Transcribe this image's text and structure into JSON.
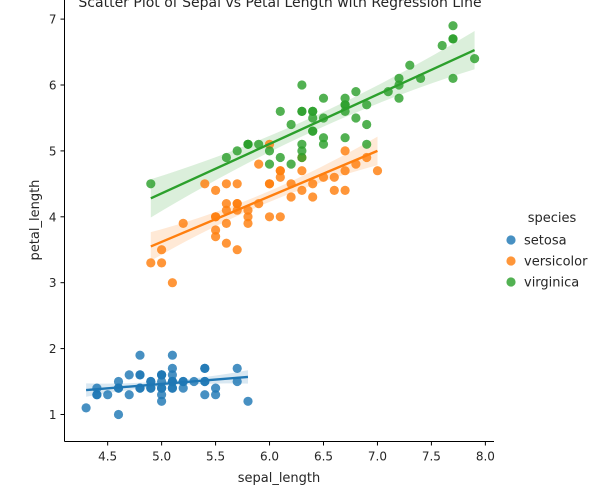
{
  "chart_data": {
    "type": "scatter",
    "title": "Scatter Plot of Sepal vs Petal Length with Regression Line",
    "xlabel": "sepal_length",
    "ylabel": "petal_length",
    "xlim": [
      4.1,
      8.08
    ],
    "ylim": [
      0.59,
      7.29
    ],
    "xticks": [
      4.5,
      5.0,
      5.5,
      6.0,
      6.5,
      7.0,
      7.5,
      8.0
    ],
    "xtick_labels": [
      "4.5",
      "5.0",
      "5.5",
      "6.0",
      "6.5",
      "7.0",
      "7.5",
      "8.0"
    ],
    "yticks": [
      1,
      2,
      3,
      4,
      5,
      6,
      7
    ],
    "ytick_labels": [
      "1",
      "2",
      "3",
      "4",
      "5",
      "6",
      "7"
    ],
    "grid": false,
    "legend": {
      "title": "species",
      "placement": "right"
    },
    "series": [
      {
        "name": "setosa",
        "color": "#1f77b4",
        "regression": {
          "x_range": [
            4.3,
            5.8
          ],
          "y_range": [
            1.37,
            1.57
          ],
          "band": 0.07
        },
        "points": [
          [
            5.1,
            1.4
          ],
          [
            4.9,
            1.4
          ],
          [
            4.7,
            1.3
          ],
          [
            4.6,
            1.5
          ],
          [
            5.0,
            1.4
          ],
          [
            5.4,
            1.7
          ],
          [
            4.6,
            1.4
          ],
          [
            5.0,
            1.5
          ],
          [
            4.4,
            1.4
          ],
          [
            4.9,
            1.5
          ],
          [
            5.4,
            1.5
          ],
          [
            4.8,
            1.6
          ],
          [
            4.8,
            1.4
          ],
          [
            4.3,
            1.1
          ],
          [
            5.8,
            1.2
          ],
          [
            5.7,
            1.5
          ],
          [
            5.4,
            1.3
          ],
          [
            5.1,
            1.4
          ],
          [
            5.7,
            1.7
          ],
          [
            5.1,
            1.5
          ],
          [
            5.4,
            1.7
          ],
          [
            5.1,
            1.5
          ],
          [
            4.6,
            1.0
          ],
          [
            5.1,
            1.7
          ],
          [
            4.8,
            1.9
          ],
          [
            5.0,
            1.6
          ],
          [
            5.0,
            1.6
          ],
          [
            5.2,
            1.5
          ],
          [
            5.2,
            1.4
          ],
          [
            4.7,
            1.6
          ],
          [
            4.8,
            1.6
          ],
          [
            5.4,
            1.5
          ],
          [
            5.2,
            1.5
          ],
          [
            5.5,
            1.4
          ],
          [
            4.9,
            1.5
          ],
          [
            5.0,
            1.2
          ],
          [
            5.5,
            1.3
          ],
          [
            4.9,
            1.4
          ],
          [
            4.4,
            1.3
          ],
          [
            5.1,
            1.5
          ],
          [
            5.0,
            1.3
          ],
          [
            4.5,
            1.3
          ],
          [
            4.4,
            1.3
          ],
          [
            5.0,
            1.6
          ],
          [
            5.1,
            1.9
          ],
          [
            4.8,
            1.4
          ],
          [
            5.1,
            1.6
          ],
          [
            4.6,
            1.4
          ],
          [
            5.3,
            1.5
          ],
          [
            5.0,
            1.4
          ]
        ]
      },
      {
        "name": "versicolor",
        "color": "#ff7f0e",
        "regression": {
          "x_range": [
            4.9,
            7.0
          ],
          "y_range": [
            3.55,
            5.0
          ],
          "band": 0.15
        },
        "points": [
          [
            7.0,
            4.7
          ],
          [
            6.4,
            4.5
          ],
          [
            6.9,
            4.9
          ],
          [
            5.5,
            4.0
          ],
          [
            6.5,
            4.6
          ],
          [
            5.7,
            4.5
          ],
          [
            6.3,
            4.7
          ],
          [
            4.9,
            3.3
          ],
          [
            6.6,
            4.6
          ],
          [
            5.2,
            3.9
          ],
          [
            5.0,
            3.5
          ],
          [
            5.9,
            4.2
          ],
          [
            6.0,
            4.0
          ],
          [
            6.1,
            4.7
          ],
          [
            5.6,
            3.6
          ],
          [
            6.7,
            4.4
          ],
          [
            5.6,
            4.5
          ],
          [
            5.8,
            4.1
          ],
          [
            6.2,
            4.5
          ],
          [
            5.6,
            3.9
          ],
          [
            5.9,
            4.8
          ],
          [
            6.1,
            4.0
          ],
          [
            6.3,
            4.9
          ],
          [
            6.1,
            4.7
          ],
          [
            6.4,
            4.3
          ],
          [
            6.6,
            4.4
          ],
          [
            6.8,
            4.8
          ],
          [
            6.7,
            5.0
          ],
          [
            6.0,
            4.5
          ],
          [
            5.7,
            3.5
          ],
          [
            5.5,
            3.8
          ],
          [
            5.5,
            3.7
          ],
          [
            5.8,
            3.9
          ],
          [
            6.0,
            5.1
          ],
          [
            5.4,
            4.5
          ],
          [
            6.0,
            4.5
          ],
          [
            6.7,
            4.7
          ],
          [
            6.3,
            4.4
          ],
          [
            5.6,
            4.1
          ],
          [
            5.5,
            4.0
          ],
          [
            5.5,
            4.4
          ],
          [
            6.1,
            4.6
          ],
          [
            5.8,
            4.0
          ],
          [
            5.0,
            3.3
          ],
          [
            5.6,
            4.2
          ],
          [
            5.7,
            4.2
          ],
          [
            5.7,
            4.2
          ],
          [
            6.2,
            4.3
          ],
          [
            5.1,
            3.0
          ],
          [
            5.7,
            4.1
          ]
        ]
      },
      {
        "name": "virginica",
        "color": "#2ca02c",
        "regression": {
          "x_range": [
            4.9,
            7.9
          ],
          "y_range": [
            4.28,
            6.53
          ],
          "band": 0.2
        },
        "points": [
          [
            6.3,
            6.0
          ],
          [
            5.8,
            5.1
          ],
          [
            7.1,
            5.9
          ],
          [
            6.3,
            5.6
          ],
          [
            6.5,
            5.8
          ],
          [
            7.6,
            6.6
          ],
          [
            4.9,
            4.5
          ],
          [
            7.3,
            6.3
          ],
          [
            6.7,
            5.8
          ],
          [
            7.2,
            6.1
          ],
          [
            6.5,
            5.1
          ],
          [
            6.4,
            5.3
          ],
          [
            6.8,
            5.5
          ],
          [
            5.7,
            5.0
          ],
          [
            5.8,
            5.1
          ],
          [
            6.4,
            5.3
          ],
          [
            6.5,
            5.5
          ],
          [
            7.7,
            6.7
          ],
          [
            7.7,
            6.9
          ],
          [
            6.0,
            5.0
          ],
          [
            6.9,
            5.7
          ],
          [
            5.6,
            4.9
          ],
          [
            7.7,
            6.7
          ],
          [
            6.3,
            4.9
          ],
          [
            6.7,
            5.7
          ],
          [
            7.2,
            6.0
          ],
          [
            6.2,
            4.8
          ],
          [
            6.1,
            4.9
          ],
          [
            6.4,
            5.6
          ],
          [
            7.2,
            5.8
          ],
          [
            7.4,
            6.1
          ],
          [
            7.9,
            6.4
          ],
          [
            6.4,
            5.6
          ],
          [
            6.3,
            5.1
          ],
          [
            6.1,
            5.6
          ],
          [
            7.7,
            6.1
          ],
          [
            6.3,
            5.6
          ],
          [
            6.4,
            5.5
          ],
          [
            6.0,
            4.8
          ],
          [
            6.9,
            5.4
          ],
          [
            6.7,
            5.6
          ],
          [
            6.9,
            5.1
          ],
          [
            5.8,
            5.1
          ],
          [
            6.8,
            5.9
          ],
          [
            6.7,
            5.7
          ],
          [
            6.7,
            5.2
          ],
          [
            6.3,
            5.0
          ],
          [
            6.5,
            5.2
          ],
          [
            6.2,
            5.4
          ],
          [
            5.9,
            5.1
          ]
        ]
      }
    ]
  }
}
